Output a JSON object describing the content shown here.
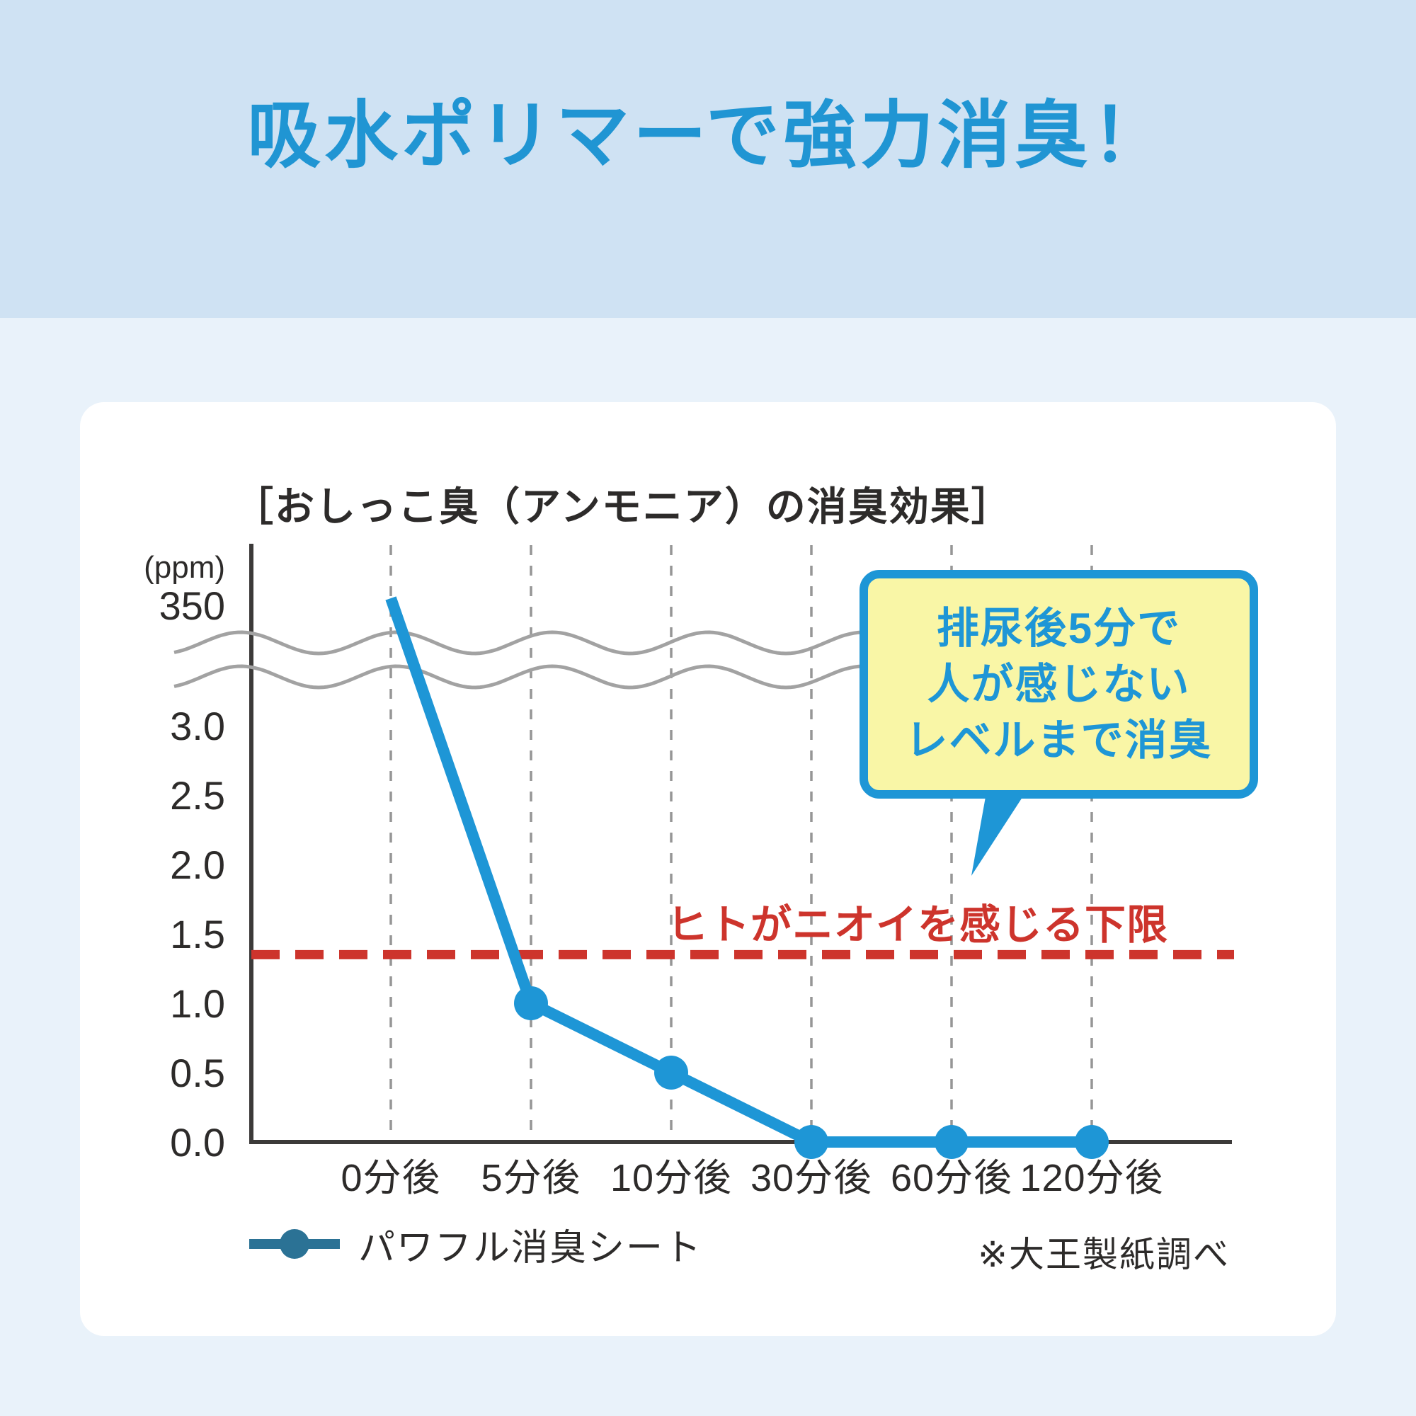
{
  "header": {
    "title": "吸水ポリマーで強力消臭！"
  },
  "chart_data": {
    "type": "line",
    "title": "［おしっこ臭（アンモニア）の消臭効果］",
    "unit_label": "(ppm)",
    "categories": [
      "0分後",
      "5分後",
      "10分後",
      "30分後",
      "60分後",
      "120分後"
    ],
    "series": [
      {
        "name": "パワフル消臭シート",
        "values": [
          350,
          1.0,
          0.5,
          0.0,
          0.0,
          0.0
        ]
      }
    ],
    "y_ticks": [
      {
        "value": 350,
        "label": "350"
      },
      {
        "value": 3.0,
        "label": "3.0"
      },
      {
        "value": 2.5,
        "label": "2.5"
      },
      {
        "value": 2.0,
        "label": "2.0"
      },
      {
        "value": 1.5,
        "label": "1.5"
      },
      {
        "value": 1.0,
        "label": "1.0"
      },
      {
        "value": 0.5,
        "label": "0.5"
      },
      {
        "value": 0.0,
        "label": "0.0"
      }
    ],
    "ylim_lower": [
      0,
      3.2
    ],
    "axis_break": true,
    "grid": "vertical-dashed",
    "legend_position": "bottom-left",
    "threshold": {
      "value": 1.35,
      "label": "ヒトがニオイを感じる下限"
    },
    "callout": {
      "lines": [
        "排尿後5分で",
        "人が感じない",
        "レベルまで消臭"
      ]
    },
    "note": "※大王製紙調べ"
  },
  "colors": {
    "accent_blue": "#1e96d6",
    "title_blue": "#2095d3",
    "legend_blue": "#2b7295",
    "threshold_red": "#cd342c",
    "callout_bg": "#f9f6a6",
    "header_band": "#cfe2f3",
    "page_bg": "#e9f2fa",
    "card_bg": "#ffffff",
    "text_dark": "#2d2b2a",
    "axis_dark": "#3c3a39",
    "grid_gray": "#969696",
    "break_gray": "#a2a2a2"
  }
}
